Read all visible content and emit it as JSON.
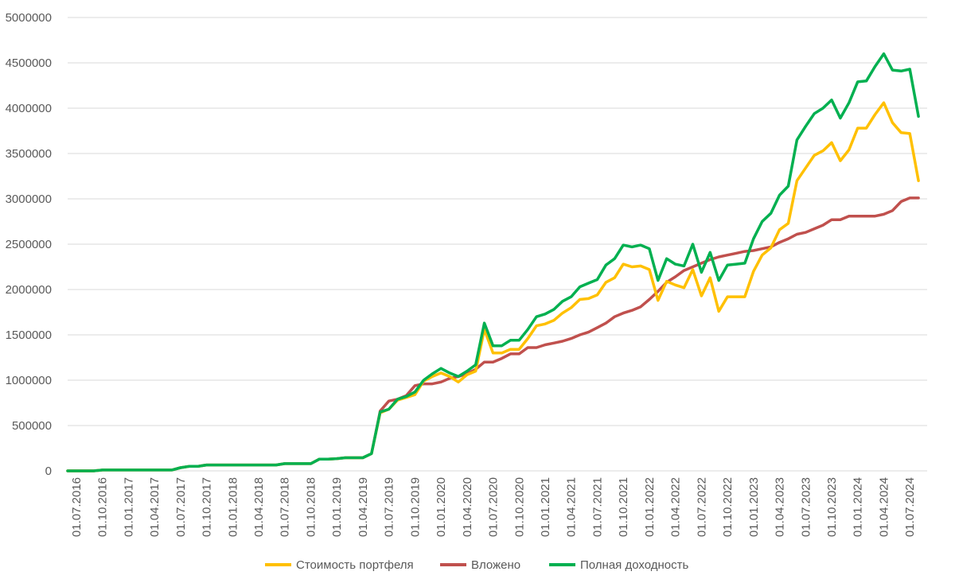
{
  "chart_data": {
    "type": "line",
    "title": "",
    "xlabel": "",
    "ylabel": "",
    "ylim": [
      0,
      5000000
    ],
    "yticks": [
      "0",
      "500000",
      "1000000",
      "1500000",
      "2000000",
      "2500000",
      "3000000",
      "3500000",
      "4000000",
      "4500000",
      "5000000"
    ],
    "grid": true,
    "legend_position": "bottom",
    "xtick_labels": [
      "01.07.2016",
      "01.10.2016",
      "01.01.2017",
      "01.04.2017",
      "01.07.2017",
      "01.10.2017",
      "01.01.2018",
      "01.04.2018",
      "01.07.2018",
      "01.10.2018",
      "01.01.2019",
      "01.04.2019",
      "01.07.2019",
      "01.10.2019",
      "01.01.2020",
      "01.04.2020",
      "01.07.2020",
      "01.10.2020",
      "01.01.2021",
      "01.04.2021",
      "01.07.2021",
      "01.10.2021",
      "01.01.2022",
      "01.04.2022",
      "01.07.2022",
      "01.10.2022",
      "01.01.2023",
      "01.04.2023",
      "01.07.2023",
      "01.10.2023",
      "01.01.2024",
      "01.04.2024",
      "01.07.2024"
    ],
    "x": [
      "01.07.2016",
      "01.08.2016",
      "01.09.2016",
      "01.10.2016",
      "01.11.2016",
      "01.12.2016",
      "01.01.2017",
      "01.02.2017",
      "01.03.2017",
      "01.04.2017",
      "01.05.2017",
      "01.06.2017",
      "01.07.2017",
      "01.08.2017",
      "01.09.2017",
      "01.10.2017",
      "01.11.2017",
      "01.12.2017",
      "01.01.2018",
      "01.02.2018",
      "01.03.2018",
      "01.04.2018",
      "01.05.2018",
      "01.06.2018",
      "01.07.2018",
      "01.08.2018",
      "01.09.2018",
      "01.10.2018",
      "01.11.2018",
      "01.12.2018",
      "01.01.2019",
      "01.02.2019",
      "01.03.2019",
      "01.04.2019",
      "01.05.2019",
      "01.06.2019",
      "01.07.2019",
      "01.08.2019",
      "01.09.2019",
      "01.10.2019",
      "01.11.2019",
      "01.12.2019",
      "01.01.2020",
      "01.02.2020",
      "01.03.2020",
      "01.04.2020",
      "01.05.2020",
      "01.06.2020",
      "01.07.2020",
      "01.08.2020",
      "01.09.2020",
      "01.10.2020",
      "01.11.2020",
      "01.12.2020",
      "01.01.2021",
      "01.02.2021",
      "01.03.2021",
      "01.04.2021",
      "01.05.2021",
      "01.06.2021",
      "01.07.2021",
      "01.08.2021",
      "01.09.2021",
      "01.10.2021",
      "01.11.2021",
      "01.12.2021",
      "01.01.2022",
      "01.02.2022",
      "01.03.2022",
      "01.04.2022",
      "01.05.2022",
      "01.06.2022",
      "01.07.2022",
      "01.08.2022",
      "01.09.2022",
      "01.10.2022",
      "01.11.2022",
      "01.12.2022",
      "01.01.2023",
      "01.02.2023",
      "01.03.2023",
      "01.04.2023",
      "01.05.2023",
      "01.06.2023",
      "01.07.2023",
      "01.08.2023",
      "01.09.2023",
      "01.10.2023",
      "01.11.2023",
      "01.12.2023",
      "01.01.2024",
      "01.02.2024",
      "01.03.2024",
      "01.04.2024",
      "01.05.2024",
      "01.06.2024",
      "01.07.2024",
      "01.08.2024",
      "01.09.2024"
    ],
    "series": [
      {
        "name": "Стоимость портфеля",
        "color": "#FFC000",
        "values": [
          0,
          0,
          0,
          0,
          10000,
          10000,
          10000,
          10000,
          10000,
          10000,
          10000,
          10000,
          10000,
          35000,
          50000,
          50000,
          65000,
          65000,
          65000,
          65000,
          65000,
          65000,
          65000,
          65000,
          65000,
          80000,
          80000,
          80000,
          80000,
          130000,
          130000,
          135000,
          145000,
          145000,
          145000,
          190000,
          640000,
          680000,
          780000,
          810000,
          840000,
          990000,
          1040000,
          1080000,
          1040000,
          980000,
          1060000,
          1100000,
          1560000,
          1300000,
          1300000,
          1340000,
          1340000,
          1460000,
          1600000,
          1620000,
          1660000,
          1740000,
          1800000,
          1890000,
          1900000,
          1940000,
          2080000,
          2130000,
          2280000,
          2250000,
          2260000,
          2220000,
          1880000,
          2090000,
          2050000,
          2020000,
          2220000,
          1930000,
          2130000,
          1760000,
          1920000,
          1920000,
          1920000,
          2200000,
          2380000,
          2460000,
          2660000,
          2730000,
          3200000,
          3340000,
          3480000,
          3530000,
          3620000,
          3420000,
          3540000,
          3780000,
          3780000,
          3930000,
          4060000,
          3840000,
          3730000,
          3720000,
          3200000
        ]
      },
      {
        "name": "Вложено",
        "color": "#C0504D",
        "values": [
          0,
          0,
          0,
          0,
          10000,
          10000,
          10000,
          10000,
          10000,
          10000,
          10000,
          10000,
          10000,
          35000,
          50000,
          50000,
          65000,
          65000,
          65000,
          65000,
          65000,
          65000,
          65000,
          65000,
          65000,
          80000,
          80000,
          80000,
          80000,
          130000,
          130000,
          135000,
          145000,
          145000,
          145000,
          190000,
          660000,
          770000,
          790000,
          830000,
          940000,
          960000,
          960000,
          980000,
          1020000,
          1040000,
          1070000,
          1120000,
          1200000,
          1200000,
          1240000,
          1290000,
          1290000,
          1360000,
          1360000,
          1390000,
          1410000,
          1430000,
          1460000,
          1500000,
          1530000,
          1580000,
          1630000,
          1700000,
          1740000,
          1770000,
          1810000,
          1890000,
          1980000,
          2080000,
          2140000,
          2210000,
          2250000,
          2290000,
          2330000,
          2360000,
          2380000,
          2400000,
          2420000,
          2430000,
          2450000,
          2470000,
          2520000,
          2560000,
          2610000,
          2630000,
          2670000,
          2710000,
          2770000,
          2770000,
          2810000,
          2810000,
          2810000,
          2810000,
          2830000,
          2870000,
          2970000,
          3010000,
          3010000
        ]
      },
      {
        "name": "Полная доходность",
        "color": "#00B050",
        "values": [
          0,
          0,
          0,
          0,
          10000,
          10000,
          10000,
          10000,
          10000,
          10000,
          10000,
          10000,
          10000,
          35000,
          50000,
          50000,
          65000,
          65000,
          65000,
          65000,
          65000,
          65000,
          65000,
          65000,
          65000,
          80000,
          80000,
          80000,
          80000,
          130000,
          130000,
          135000,
          145000,
          145000,
          145000,
          190000,
          650000,
          680000,
          790000,
          820000,
          870000,
          1000000,
          1070000,
          1130000,
          1080000,
          1040000,
          1100000,
          1170000,
          1630000,
          1380000,
          1380000,
          1440000,
          1440000,
          1560000,
          1700000,
          1730000,
          1780000,
          1870000,
          1920000,
          2030000,
          2070000,
          2110000,
          2270000,
          2340000,
          2490000,
          2470000,
          2490000,
          2450000,
          2100000,
          2340000,
          2280000,
          2260000,
          2500000,
          2190000,
          2410000,
          2100000,
          2270000,
          2280000,
          2290000,
          2560000,
          2750000,
          2840000,
          3040000,
          3140000,
          3650000,
          3800000,
          3940000,
          4000000,
          4090000,
          3890000,
          4060000,
          4290000,
          4300000,
          4460000,
          4600000,
          4420000,
          4410000,
          4430000,
          3910000
        ]
      }
    ]
  }
}
